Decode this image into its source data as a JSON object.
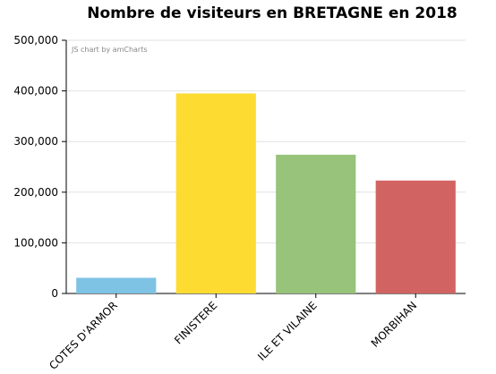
{
  "chart_data": {
    "type": "bar",
    "title": "Nombre de visiteurs en BRETAGNE en 2018",
    "credit": "JS chart by amCharts",
    "categories": [
      "COTES D'ARMOR",
      "FINISTERE",
      "ILE ET VILAINE",
      "MORBIHAN"
    ],
    "values": [
      31000,
      395000,
      274000,
      223000
    ],
    "colors": [
      "#7fc3e4",
      "#fddb30",
      "#97c37a",
      "#d26363"
    ],
    "ylim": [
      0,
      500000
    ],
    "yticks": [
      0,
      100000,
      200000,
      300000,
      400000,
      500000
    ],
    "ytick_labels": [
      "0",
      "100,000",
      "200,000",
      "300,000",
      "400,000",
      "500,000"
    ],
    "grid": true,
    "xlabel": "",
    "ylabel": ""
  }
}
